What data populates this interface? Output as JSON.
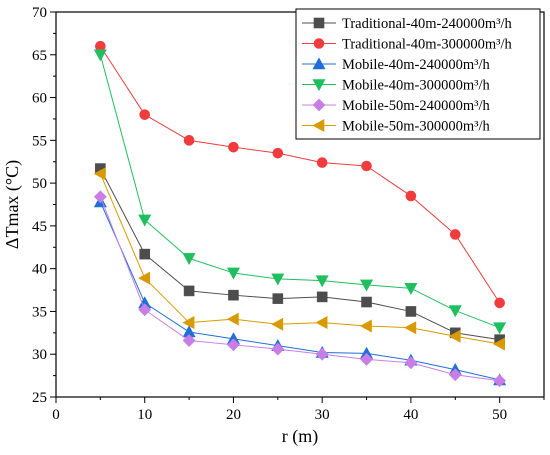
{
  "chart_data": {
    "type": "line",
    "title": "",
    "xlabel": "r (m)",
    "ylabel": "ΔTmax (°C)",
    "xlim": [
      0,
      55
    ],
    "ylim": [
      25,
      70
    ],
    "xticks": [
      0,
      10,
      20,
      30,
      40,
      50
    ],
    "yticks": [
      25,
      30,
      35,
      40,
      45,
      50,
      55,
      60,
      65,
      70
    ],
    "x": [
      5,
      10,
      15,
      20,
      25,
      30,
      35,
      40,
      45,
      50
    ],
    "grid": false,
    "legend_position": "top-right",
    "series": [
      {
        "name": "Traditional-40m-240000m³/h",
        "color": "#4d4d4d",
        "marker": "square",
        "values": [
          51.7,
          41.7,
          37.4,
          36.9,
          36.5,
          36.7,
          36.1,
          35.0,
          32.5,
          31.7
        ]
      },
      {
        "name": "Traditional-40m-300000m³/h",
        "color": "#f03c3c",
        "marker": "circle",
        "values": [
          66.0,
          58.0,
          55.0,
          54.2,
          53.5,
          52.4,
          52.0,
          48.5,
          44.0,
          36.0
        ]
      },
      {
        "name": "Mobile-40m-240000m³/h",
        "color": "#1f6fd6",
        "marker": "triangle-up",
        "values": [
          47.8,
          36.0,
          32.6,
          31.8,
          31.0,
          30.2,
          30.1,
          29.3,
          28.2,
          27.0
        ]
      },
      {
        "name": "Mobile-40m-300000m³/h",
        "color": "#1fbf5f",
        "marker": "triangle-down",
        "values": [
          65.0,
          45.7,
          41.2,
          39.5,
          38.8,
          38.6,
          38.1,
          37.7,
          35.1,
          33.1
        ]
      },
      {
        "name": "Mobile-50m-240000m³/h",
        "color": "#c77fe6",
        "marker": "diamond",
        "values": [
          48.4,
          35.2,
          31.6,
          31.1,
          30.6,
          30.0,
          29.4,
          29.0,
          27.6,
          26.9
        ]
      },
      {
        "name": "Mobile-50m-300000m³/h",
        "color": "#d99a00",
        "marker": "triangle-left",
        "values": [
          51.1,
          38.9,
          33.7,
          34.1,
          33.5,
          33.7,
          33.3,
          33.1,
          32.1,
          31.2
        ]
      }
    ]
  }
}
